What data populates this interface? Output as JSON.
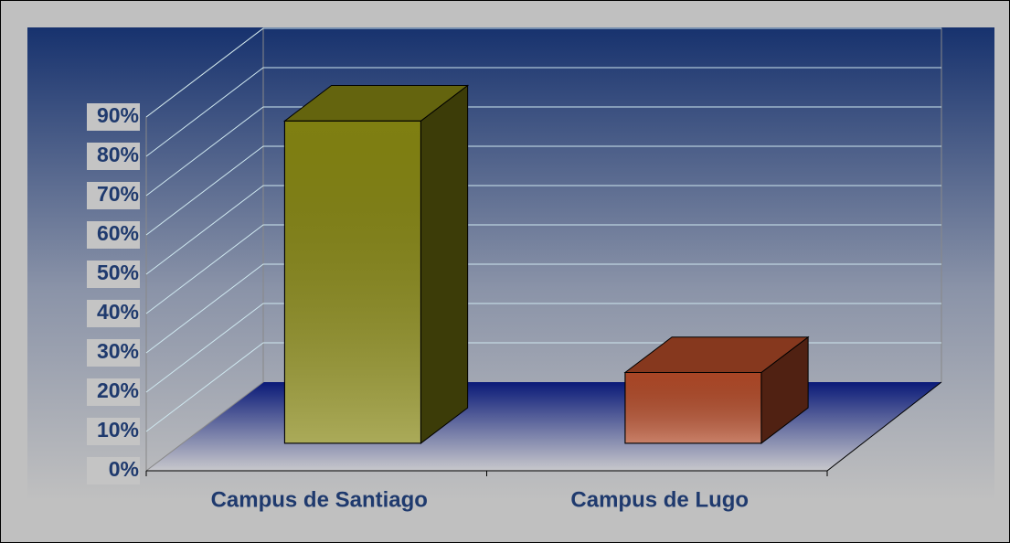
{
  "chart_data": {
    "type": "bar3d",
    "categories": [
      "Campus de Santiago",
      "Campus de Lugo"
    ],
    "values": [
      82,
      18
    ],
    "colors": [
      "#868612",
      "#b24a28"
    ],
    "ylim": [
      0,
      90
    ],
    "yticks": [
      {
        "value": 0,
        "label": "0%"
      },
      {
        "value": 10,
        "label": "10%"
      },
      {
        "value": 20,
        "label": "20%"
      },
      {
        "value": 30,
        "label": "30%"
      },
      {
        "value": 40,
        "label": "40%"
      },
      {
        "value": 50,
        "label": "50%"
      },
      {
        "value": 60,
        "label": "60%"
      },
      {
        "value": 70,
        "label": "70%"
      },
      {
        "value": 80,
        "label": "80%"
      },
      {
        "value": 90,
        "label": "90%"
      }
    ],
    "grid": true
  }
}
